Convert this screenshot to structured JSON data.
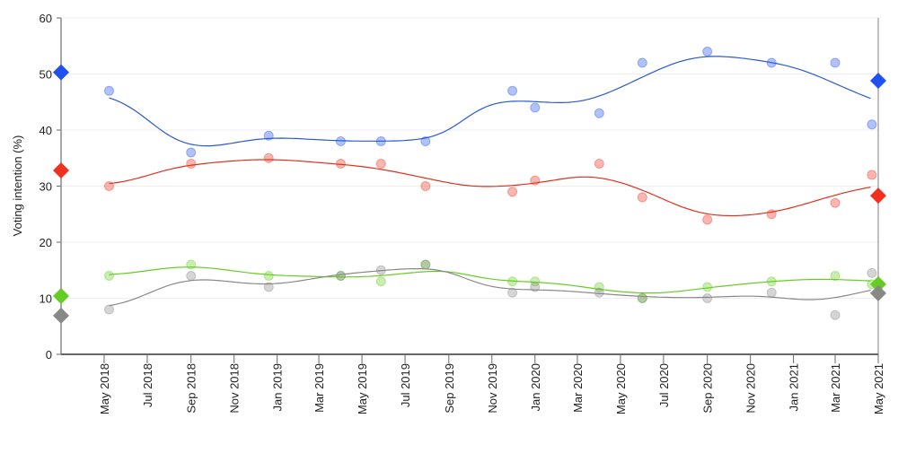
{
  "chart_data": {
    "type": "scatter",
    "title": "",
    "xlabel": "",
    "ylabel": "Voting intention (%)",
    "ylim": [
      0,
      60
    ],
    "yticks": [
      "0",
      "10",
      "20",
      "30",
      "40",
      "50",
      "60"
    ],
    "xlim": [
      "2018-03-01",
      "2021-05-01"
    ],
    "xticks": [
      {
        "date": "2018-05-01",
        "label": "May 2018"
      },
      {
        "date": "2018-07-01",
        "label": "Jul 2018"
      },
      {
        "date": "2018-09-01",
        "label": "Sep 2018"
      },
      {
        "date": "2018-11-01",
        "label": "Nov 2018"
      },
      {
        "date": "2019-01-01",
        "label": "Jan 2019"
      },
      {
        "date": "2019-03-01",
        "label": "Mar 2019"
      },
      {
        "date": "2019-05-01",
        "label": "May 2019"
      },
      {
        "date": "2019-07-01",
        "label": "Jul 2019"
      },
      {
        "date": "2019-09-01",
        "label": "Sep 2019"
      },
      {
        "date": "2019-11-01",
        "label": "Nov 2019"
      },
      {
        "date": "2020-01-01",
        "label": "Jan 2020"
      },
      {
        "date": "2020-03-01",
        "label": "Mar 2020"
      },
      {
        "date": "2020-05-01",
        "label": "May 2020"
      },
      {
        "date": "2020-07-01",
        "label": "Jul 2020"
      },
      {
        "date": "2020-09-01",
        "label": "Sep 2020"
      },
      {
        "date": "2020-11-01",
        "label": "Nov 2020"
      },
      {
        "date": "2021-01-01",
        "label": "Jan 2021"
      },
      {
        "date": "2021-03-01",
        "label": "Mar 2021"
      },
      {
        "date": "2021-05-01",
        "label": "May 2021"
      }
    ],
    "grid": true,
    "x": [
      "2018-05-08",
      "2018-09-01",
      "2018-12-20",
      "2019-04-01",
      "2019-05-28",
      "2019-07-30",
      "2019-11-30",
      "2020-01-01",
      "2020-04-01",
      "2020-06-01",
      "2020-09-01",
      "2020-12-01",
      "2021-03-01",
      "2021-04-22"
    ],
    "series": [
      {
        "color": "#2050f0",
        "line_color": "#2a5ad0",
        "values": [
          47,
          36,
          39,
          38,
          38,
          38,
          47,
          44,
          43,
          52,
          54,
          52,
          52,
          41
        ],
        "start_result": 50.3,
        "end_result": 48.8
      },
      {
        "color": "#f03020",
        "line_color": "#e03020",
        "values": [
          30,
          34,
          35,
          34,
          34,
          30,
          29,
          31,
          34,
          28,
          24,
          25,
          27,
          32
        ],
        "start_result": 32.8,
        "end_result": 28.3
      },
      {
        "color": "#66cc22",
        "line_color": "#66cc22",
        "values": [
          14,
          16,
          14,
          14,
          13,
          16,
          13,
          13,
          12,
          10,
          12,
          13,
          14,
          12.5
        ],
        "start_result": 10.4,
        "end_result": 12.5
      },
      {
        "color": "#888888",
        "line_color": "#888888",
        "values": [
          8,
          14,
          12,
          14,
          15,
          16,
          11,
          12,
          11,
          10,
          10,
          11,
          7,
          14.5
        ],
        "start_result": 6.9,
        "end_result": 10.9
      }
    ]
  }
}
